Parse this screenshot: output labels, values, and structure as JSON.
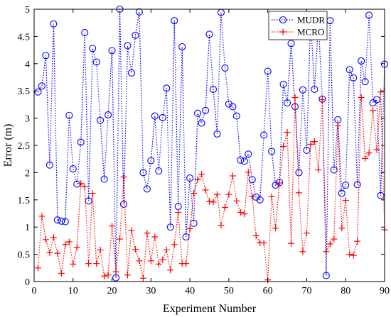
{
  "chart_data": {
    "type": "line",
    "xlabel": "Experiment Number",
    "ylabel": "Error (m)",
    "xlim": [
      0,
      90
    ],
    "ylim": [
      0,
      5
    ],
    "xticks": [
      "0",
      "10",
      "20",
      "30",
      "40",
      "50",
      "60",
      "70",
      "80",
      "90"
    ],
    "yticks": [
      "0",
      "0.5",
      "1",
      "1.5",
      "2",
      "2.5",
      "3",
      "3.5",
      "4",
      "4.5",
      "5"
    ],
    "grid": false,
    "legend_position": "top-right",
    "series": [
      {
        "name": "MUDR",
        "color": "#0000ff",
        "line_style": "dotted",
        "marker": "circle",
        "x": [
          1,
          2,
          3,
          4,
          5,
          6,
          7,
          8,
          9,
          10,
          11,
          12,
          13,
          14,
          15,
          16,
          17,
          18,
          19,
          20,
          21,
          22,
          23,
          24,
          25,
          26,
          27,
          28,
          29,
          30,
          31,
          32,
          33,
          34,
          35,
          36,
          37,
          38,
          39,
          40,
          41,
          42,
          43,
          44,
          45,
          46,
          47,
          48,
          49,
          50,
          51,
          52,
          53,
          54,
          55,
          56,
          57,
          58,
          59,
          60,
          61,
          62,
          63,
          64,
          65,
          66,
          67,
          68,
          69,
          70,
          71,
          72,
          73,
          74,
          75,
          76,
          77,
          78,
          79,
          80,
          81,
          82,
          83,
          84,
          85,
          86,
          87,
          88,
          89,
          90
        ],
        "y": [
          3.48,
          3.59,
          4.15,
          2.14,
          4.73,
          1.13,
          1.11,
          1.1,
          3.05,
          2.07,
          1.79,
          2.56,
          4.57,
          1.48,
          4.28,
          4.03,
          2.96,
          1.88,
          3.06,
          4.24,
          0.07,
          5.0,
          1.42,
          4.33,
          3.83,
          4.52,
          4.95,
          2.0,
          1.7,
          2.22,
          3.04,
          2.03,
          3.01,
          3.55,
          1.0,
          4.79,
          1.38,
          4.31,
          0.82,
          1.9,
          1.07,
          3.09,
          2.91,
          3.14,
          4.54,
          3.53,
          2.71,
          4.94,
          3.92,
          3.26,
          3.21,
          3.04,
          2.23,
          2.21,
          2.34,
          1.87,
          1.55,
          1.5,
          2.69,
          3.86,
          2.39,
          1.77,
          1.82,
          3.62,
          3.28,
          4.37,
          3.21,
          2.0,
          3.52,
          2.41,
          4.83,
          3.53,
          4.75,
          3.35,
          0.11,
          4.79,
          2.05,
          2.97,
          1.62,
          1.77,
          3.89,
          3.74,
          1.78,
          4.05,
          3.67,
          4.89,
          3.28,
          3.34,
          1.58,
          3.99
        ]
      },
      {
        "name": "MCRO",
        "color": "#ff0000",
        "line_style": "dotted",
        "marker": "plus",
        "x": [
          1,
          2,
          3,
          4,
          5,
          6,
          7,
          8,
          9,
          10,
          11,
          12,
          13,
          14,
          15,
          16,
          17,
          18,
          19,
          20,
          21,
          22,
          23,
          24,
          25,
          26,
          27,
          28,
          29,
          30,
          31,
          32,
          33,
          34,
          35,
          36,
          37,
          38,
          39,
          40,
          41,
          42,
          43,
          44,
          45,
          46,
          47,
          48,
          49,
          50,
          51,
          52,
          53,
          54,
          55,
          56,
          57,
          58,
          59,
          60,
          61,
          62,
          63,
          64,
          65,
          66,
          67,
          68,
          69,
          70,
          71,
          72,
          73,
          74,
          75,
          76,
          77,
          78,
          79,
          80,
          81,
          82,
          83,
          84,
          85,
          86,
          87,
          88,
          89,
          90
        ],
        "y": [
          0.25,
          1.2,
          0.77,
          0.53,
          0.81,
          0.52,
          0.15,
          0.68,
          0.73,
          0.32,
          0.63,
          1.8,
          1.74,
          0.33,
          1.62,
          0.33,
          0.58,
          0.1,
          0.12,
          1.02,
          0.18,
          0.78,
          1.92,
          0.12,
          0.94,
          0.59,
          0.38,
          0.06,
          0.89,
          0.38,
          0.82,
          0.32,
          0.4,
          0.58,
          0.21,
          0.68,
          1.27,
          0.33,
          0.33,
          0.97,
          1.62,
          1.87,
          1.97,
          1.68,
          1.47,
          1.46,
          1.6,
          1.03,
          1.36,
          1.6,
          1.94,
          1.48,
          1.27,
          1.24,
          2.01,
          1.56,
          0.84,
          0.71,
          0.71,
          0.03,
          1.56,
          0.98,
          1.81,
          2.48,
          2.74,
          0.7,
          3.38,
          1.63,
          0.55,
          0.89,
          2.52,
          2.57,
          2.05,
          3.34,
          0.55,
          0.69,
          0.78,
          2.86,
          0.98,
          1.49,
          0.5,
          0.48,
          0.74,
          3.38,
          2.26,
          2.36,
          3.14,
          2.42,
          3.48,
          0.95
        ]
      }
    ]
  }
}
